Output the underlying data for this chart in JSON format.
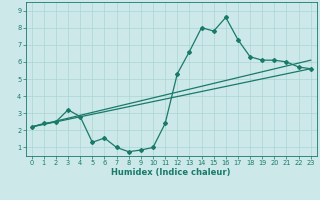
{
  "xlabel": "Humidex (Indice chaleur)",
  "xlim": [
    -0.5,
    23.5
  ],
  "ylim": [
    0.5,
    9.5
  ],
  "xticks": [
    0,
    1,
    2,
    3,
    4,
    5,
    6,
    7,
    8,
    9,
    10,
    11,
    12,
    13,
    14,
    15,
    16,
    17,
    18,
    19,
    20,
    21,
    22,
    23
  ],
  "yticks": [
    1,
    2,
    3,
    4,
    5,
    6,
    7,
    8,
    9
  ],
  "bg_color": "#cce8e8",
  "line_color": "#1a7a6a",
  "grid_color": "#aad4d4",
  "line1_x": [
    0,
    1,
    2,
    3,
    4,
    5,
    6,
    7,
    8,
    9,
    10,
    11,
    12,
    13,
    14,
    15,
    16,
    17,
    18,
    19,
    20,
    21,
    22,
    23
  ],
  "line1_y": [
    2.2,
    2.4,
    2.5,
    3.2,
    2.8,
    1.3,
    1.55,
    1.0,
    0.75,
    0.85,
    1.0,
    2.4,
    5.3,
    6.6,
    8.0,
    7.8,
    8.6,
    7.3,
    6.3,
    6.1,
    6.1,
    6.0,
    5.7,
    5.6
  ],
  "line2_x": [
    0,
    23
  ],
  "line2_y": [
    2.2,
    6.1
  ],
  "line3_x": [
    0,
    23
  ],
  "line3_y": [
    2.2,
    5.6
  ],
  "xlabel_fontsize": 6.0,
  "tick_fontsize": 4.8,
  "linewidth": 0.9,
  "markersize": 2.0
}
